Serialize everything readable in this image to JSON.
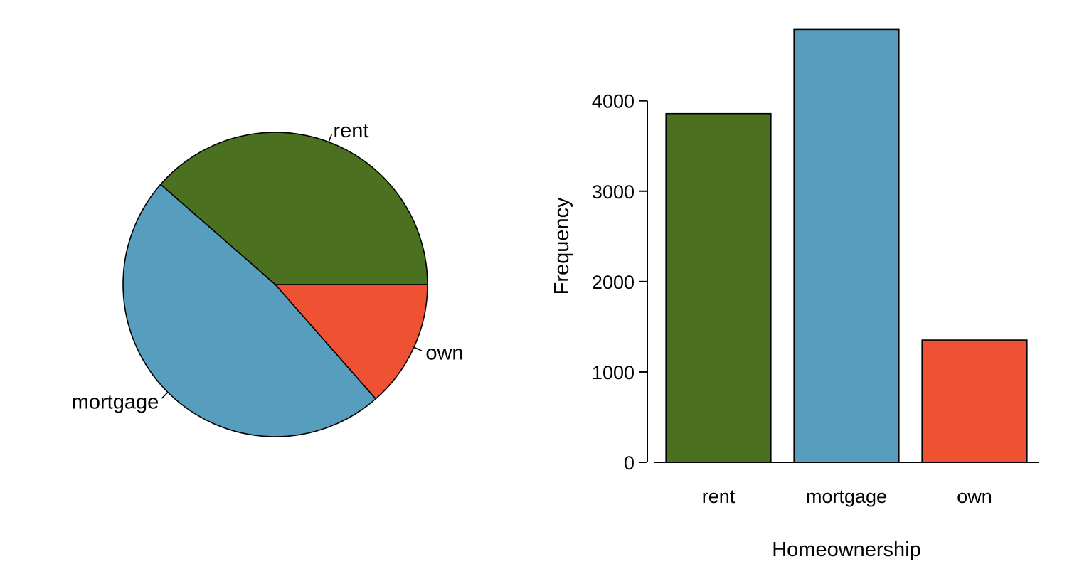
{
  "chart_data": [
    {
      "type": "pie",
      "title": "",
      "categories": [
        "rent",
        "mortgage",
        "own"
      ],
      "values": [
        3858,
        4789,
        1353
      ],
      "colors": [
        "#4a7020",
        "#569dbe",
        "#ef5233"
      ]
    },
    {
      "type": "bar",
      "title": "",
      "categories": [
        "rent",
        "mortgage",
        "own"
      ],
      "values": [
        3858,
        4789,
        1353
      ],
      "colors": [
        "#4a7020",
        "#569dbe",
        "#ef5233"
      ],
      "xlabel": "Homeownership",
      "ylabel": "Frequency",
      "ylim": [
        0,
        4800
      ],
      "yticks": [
        "0",
        "1000",
        "2000",
        "3000",
        "4000"
      ],
      "grid": false,
      "legend": "none"
    }
  ]
}
